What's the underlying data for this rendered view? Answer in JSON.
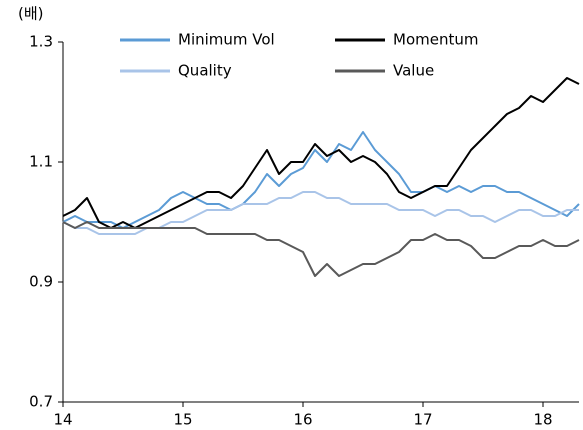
{
  "chart_data": {
    "type": "line",
    "y_label": "(배)",
    "x": [
      14.0,
      14.1,
      14.2,
      14.3,
      14.4,
      14.5,
      14.6,
      14.7,
      14.8,
      14.9,
      15.0,
      15.1,
      15.2,
      15.3,
      15.4,
      15.5,
      15.6,
      15.7,
      15.8,
      15.9,
      16.0,
      16.1,
      16.2,
      16.3,
      16.4,
      16.5,
      16.6,
      16.7,
      16.8,
      16.9,
      17.0,
      17.1,
      17.2,
      17.3,
      17.4,
      17.5,
      17.6,
      17.7,
      17.8,
      17.9,
      18.0,
      18.1,
      18.2,
      18.3
    ],
    "series": [
      {
        "name": "Minimum Vol",
        "color": "#5b9bd5",
        "values": [
          1.0,
          1.01,
          1.0,
          1.0,
          1.0,
          0.99,
          1.0,
          1.01,
          1.02,
          1.04,
          1.05,
          1.04,
          1.03,
          1.03,
          1.02,
          1.03,
          1.05,
          1.08,
          1.06,
          1.08,
          1.09,
          1.12,
          1.1,
          1.13,
          1.12,
          1.15,
          1.12,
          1.1,
          1.08,
          1.05,
          1.05,
          1.06,
          1.05,
          1.06,
          1.05,
          1.06,
          1.06,
          1.05,
          1.05,
          1.04,
          1.03,
          1.02,
          1.01,
          1.03
        ]
      },
      {
        "name": "Momentum",
        "color": "#000000",
        "values": [
          1.01,
          1.02,
          1.04,
          1.0,
          0.99,
          1.0,
          0.99,
          1.0,
          1.01,
          1.02,
          1.03,
          1.04,
          1.05,
          1.05,
          1.04,
          1.06,
          1.09,
          1.12,
          1.08,
          1.1,
          1.1,
          1.13,
          1.11,
          1.12,
          1.1,
          1.11,
          1.1,
          1.08,
          1.05,
          1.04,
          1.05,
          1.06,
          1.06,
          1.09,
          1.12,
          1.14,
          1.16,
          1.18,
          1.19,
          1.21,
          1.2,
          1.22,
          1.24,
          1.23
        ]
      },
      {
        "name": "Quality",
        "color": "#a9c4e8",
        "values": [
          1.0,
          0.99,
          0.99,
          0.98,
          0.98,
          0.98,
          0.98,
          0.99,
          0.99,
          1.0,
          1.0,
          1.01,
          1.02,
          1.02,
          1.02,
          1.03,
          1.03,
          1.03,
          1.04,
          1.04,
          1.05,
          1.05,
          1.04,
          1.04,
          1.03,
          1.03,
          1.03,
          1.03,
          1.02,
          1.02,
          1.02,
          1.01,
          1.02,
          1.02,
          1.01,
          1.01,
          1.0,
          1.01,
          1.02,
          1.02,
          1.01,
          1.01,
          1.02,
          1.02
        ]
      },
      {
        "name": "Value",
        "color": "#595959",
        "values": [
          1.0,
          0.99,
          1.0,
          0.99,
          0.99,
          0.99,
          0.99,
          0.99,
          0.99,
          0.99,
          0.99,
          0.99,
          0.98,
          0.98,
          0.98,
          0.98,
          0.98,
          0.97,
          0.97,
          0.96,
          0.95,
          0.91,
          0.93,
          0.91,
          0.92,
          0.93,
          0.93,
          0.94,
          0.95,
          0.97,
          0.97,
          0.98,
          0.97,
          0.97,
          0.96,
          0.94,
          0.94,
          0.95,
          0.96,
          0.96,
          0.97,
          0.96,
          0.96,
          0.97
        ]
      }
    ],
    "xlim": [
      14,
      18.3
    ],
    "xticks": [
      14,
      15,
      16,
      17,
      18
    ],
    "ylim": [
      0.7,
      1.3
    ],
    "yticks": [
      0.7,
      0.9,
      1.1,
      1.3
    ],
    "grid": false,
    "legend": "top"
  }
}
